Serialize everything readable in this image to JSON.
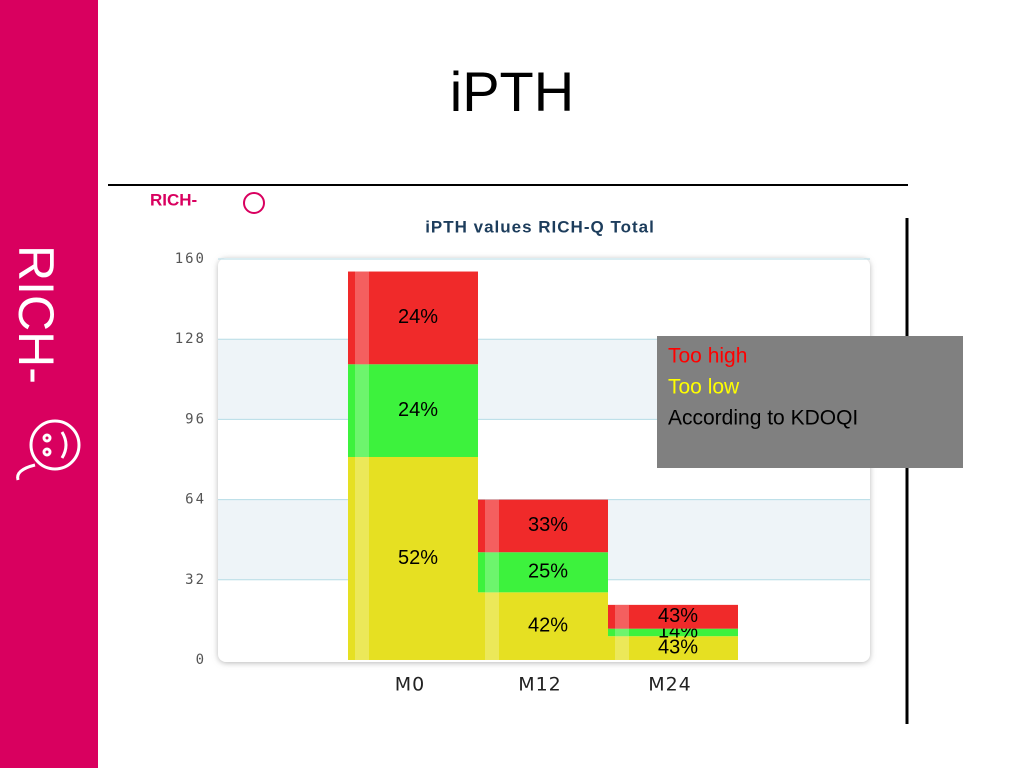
{
  "title": "iPTH",
  "sidebar_text": "RICH-",
  "chart_logo_text": "RICH-",
  "note": {
    "lines": [
      {
        "text": "Too high",
        "color": "#ff0000"
      },
      {
        "text": "Too low",
        "color": "#ffff00"
      },
      {
        "text": "According to KDOQI",
        "color": "#000000"
      }
    ]
  },
  "chart_data": {
    "type": "stacked_bar",
    "title": "iPTH values RICH-Q Total",
    "categories": [
      "M0",
      "M12",
      "M24"
    ],
    "series": [
      {
        "color": "#e6e022",
        "values": [
          81,
          27,
          9.5
        ],
        "labels": [
          "52%",
          "42%",
          "43%"
        ]
      },
      {
        "color": "#3df23d",
        "values": [
          37,
          16,
          3
        ],
        "labels": [
          "24%",
          "25%",
          "14%"
        ]
      },
      {
        "color": "#f02a2a",
        "values": [
          37,
          21,
          9.5
        ],
        "labels": [
          "24%",
          "33%",
          "43%"
        ]
      }
    ],
    "ylim": [
      0,
      160
    ],
    "yticks": [
      0,
      32,
      64,
      96,
      128,
      160
    ],
    "grid": true
  }
}
